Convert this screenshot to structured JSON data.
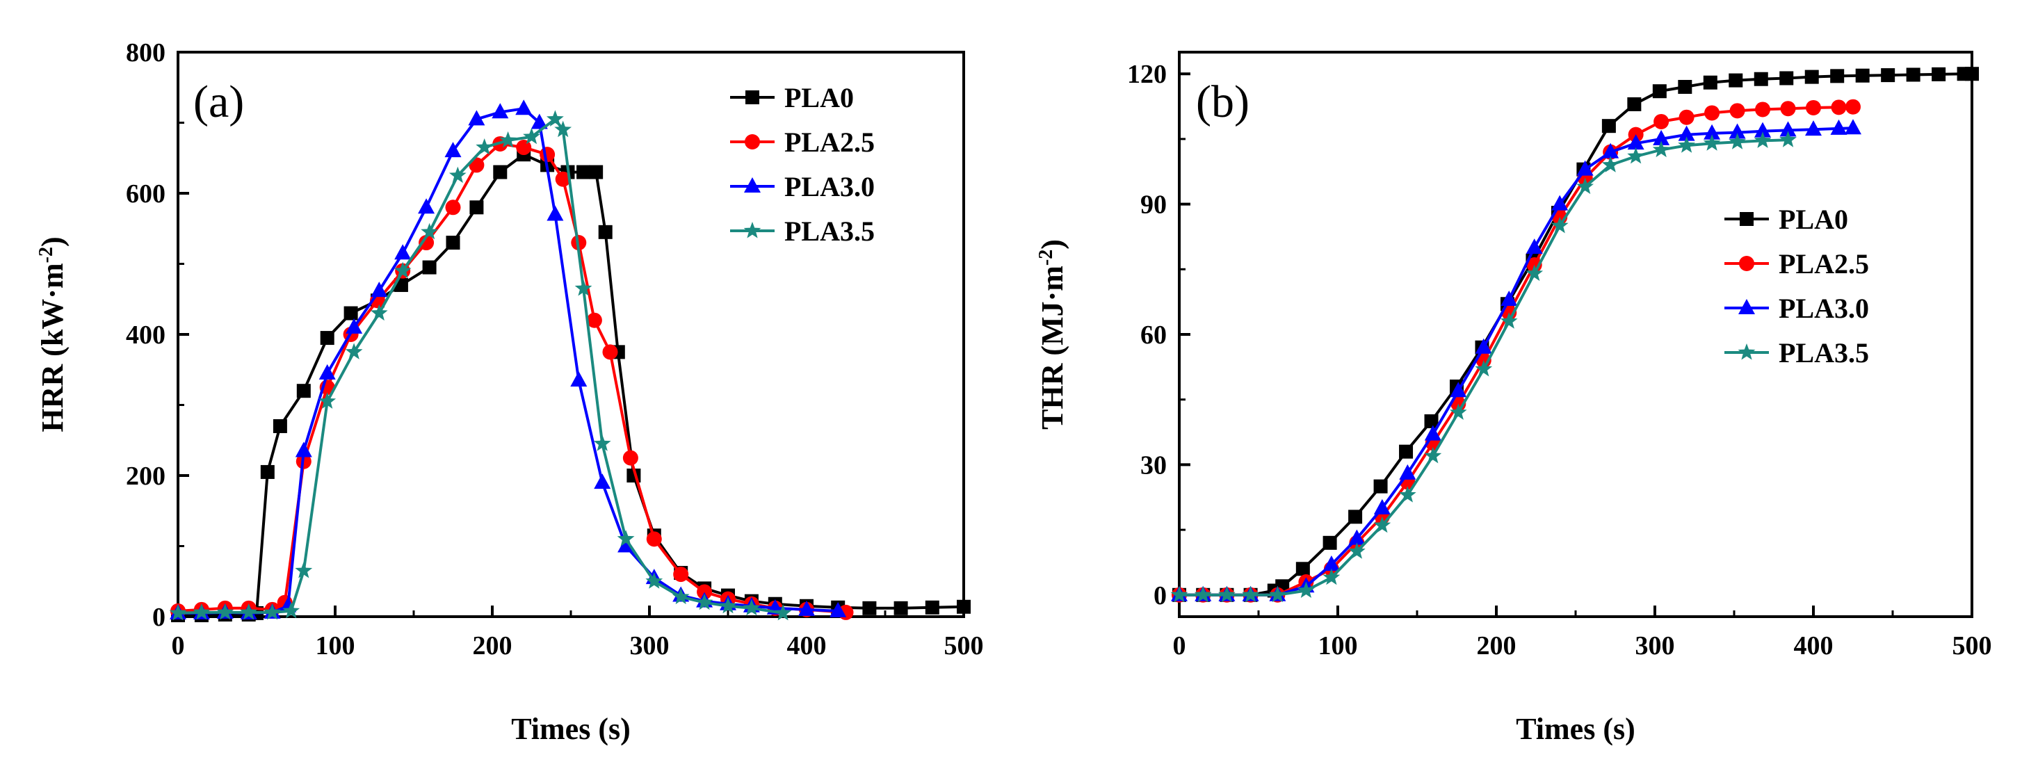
{
  "chart_data": [
    {
      "type": "line",
      "panel": "(a)",
      "xlabel": "Times (s)",
      "ylabel": "HRR (kW·m",
      "ylabel_sup": "-2",
      "ylabel_close": ")",
      "xlim": [
        0,
        500
      ],
      "ylim": [
        0,
        800
      ],
      "xticks": [
        0,
        100,
        200,
        300,
        400,
        500
      ],
      "yticks": [
        0,
        200,
        400,
        600,
        800
      ],
      "legend_position": "top-right",
      "series": [
        {
          "name": "PLA0",
          "color": "#000000",
          "marker": "square",
          "x": [
            0,
            15,
            30,
            45,
            50,
            57,
            65,
            80,
            95,
            110,
            127,
            142,
            160,
            175,
            190,
            205,
            220,
            235,
            248,
            258,
            266,
            272,
            280,
            290,
            303,
            320,
            335,
            350,
            365,
            380,
            400,
            420,
            440,
            460,
            480,
            500
          ],
          "y": [
            2,
            2,
            3,
            3,
            5,
            205,
            270,
            320,
            395,
            430,
            448,
            470,
            495,
            530,
            580,
            630,
            655,
            640,
            630,
            630,
            630,
            545,
            375,
            200,
            115,
            62,
            40,
            30,
            22,
            18,
            15,
            13,
            12,
            12,
            13,
            14
          ]
        },
        {
          "name": "PLA2.5",
          "color": "#ff0000",
          "marker": "circle",
          "x": [
            0,
            15,
            30,
            45,
            60,
            68,
            80,
            95,
            110,
            127,
            143,
            158,
            175,
            190,
            205,
            220,
            235,
            245,
            255,
            265,
            275,
            288,
            303,
            320,
            335,
            350,
            365,
            380,
            400,
            425
          ],
          "y": [
            8,
            10,
            12,
            12,
            10,
            20,
            220,
            325,
            400,
            448,
            490,
            530,
            580,
            640,
            670,
            665,
            655,
            620,
            530,
            420,
            375,
            225,
            110,
            60,
            35,
            25,
            18,
            12,
            10,
            6
          ]
        },
        {
          "name": "PLA3.0",
          "color": "#0000ff",
          "marker": "triangle",
          "x": [
            0,
            15,
            30,
            45,
            60,
            70,
            80,
            95,
            112,
            128,
            143,
            158,
            175,
            190,
            205,
            220,
            230,
            240,
            255,
            270,
            285,
            303,
            320,
            335,
            350,
            365,
            380,
            400,
            420
          ],
          "y": [
            5,
            5,
            6,
            5,
            6,
            15,
            235,
            345,
            410,
            462,
            515,
            580,
            660,
            705,
            715,
            720,
            700,
            570,
            335,
            190,
            100,
            55,
            30,
            22,
            18,
            15,
            12,
            10,
            8
          ]
        },
        {
          "name": "PLA3.5",
          "color": "#1b8a80",
          "marker": "star",
          "x": [
            0,
            15,
            30,
            45,
            60,
            72,
            80,
            95,
            112,
            128,
            143,
            160,
            178,
            195,
            210,
            225,
            240,
            245,
            258,
            270,
            285,
            303,
            320,
            335,
            350,
            365,
            385
          ],
          "y": [
            5,
            6,
            6,
            6,
            6,
            8,
            65,
            305,
            375,
            430,
            490,
            545,
            625,
            665,
            675,
            680,
            705,
            690,
            465,
            245,
            110,
            50,
            28,
            20,
            15,
            12,
            5
          ]
        }
      ]
    },
    {
      "type": "line",
      "panel": "(b)",
      "xlabel": "Times (s)",
      "ylabel": "THR (MJ·m",
      "ylabel_sup": "-2",
      "ylabel_close": ")",
      "xlim": [
        0,
        500
      ],
      "ylim": [
        -5,
        125
      ],
      "xticks": [
        0,
        100,
        200,
        300,
        400,
        500
      ],
      "yticks": [
        0,
        30,
        60,
        90,
        120
      ],
      "legend_position": "center-right",
      "series": [
        {
          "name": "PLA0",
          "color": "#000000",
          "marker": "square",
          "x": [
            0,
            15,
            30,
            45,
            60,
            65,
            78,
            95,
            111,
            127,
            143,
            159,
            175,
            191,
            207,
            223,
            239,
            255,
            271,
            287,
            303,
            319,
            335,
            351,
            367,
            383,
            399,
            415,
            431,
            447,
            463,
            479,
            495,
            500
          ],
          "y": [
            0,
            0,
            0,
            0,
            1,
            2,
            6,
            12,
            18,
            25,
            33,
            40,
            48,
            57,
            67,
            77,
            88,
            98,
            108,
            113,
            116,
            117,
            118,
            118.5,
            118.8,
            119,
            119.3,
            119.5,
            119.6,
            119.7,
            119.8,
            119.9,
            120,
            120
          ]
        },
        {
          "name": "PLA2.5",
          "color": "#ff0000",
          "marker": "circle",
          "x": [
            0,
            15,
            30,
            45,
            62,
            80,
            96,
            112,
            128,
            144,
            160,
            176,
            192,
            208,
            224,
            240,
            256,
            272,
            288,
            304,
            320,
            336,
            352,
            368,
            384,
            400,
            416,
            425
          ],
          "y": [
            0,
            0,
            0,
            0,
            0,
            3,
            6,
            12,
            18,
            26,
            35,
            44,
            54,
            65,
            76,
            87,
            96,
            102,
            106,
            109,
            110,
            111,
            111.5,
            111.8,
            112,
            112.2,
            112.3,
            112.4
          ]
        },
        {
          "name": "PLA3.0",
          "color": "#0000ff",
          "marker": "triangle",
          "x": [
            0,
            15,
            30,
            45,
            62,
            80,
            96,
            112,
            128,
            144,
            160,
            176,
            192,
            208,
            224,
            240,
            256,
            272,
            288,
            304,
            320,
            336,
            352,
            368,
            384,
            400,
            416,
            425
          ],
          "y": [
            0,
            0,
            0,
            0,
            0,
            2,
            7,
            13,
            20,
            28,
            37,
            47,
            57,
            68,
            80,
            90,
            98,
            102,
            104,
            105,
            106,
            106.3,
            106.5,
            106.8,
            107,
            107.2,
            107.4,
            107.5
          ]
        },
        {
          "name": "PLA3.5",
          "color": "#1b8a80",
          "marker": "star",
          "x": [
            0,
            15,
            30,
            45,
            62,
            80,
            96,
            112,
            128,
            144,
            160,
            176,
            192,
            208,
            224,
            240,
            256,
            272,
            288,
            304,
            320,
            336,
            352,
            368,
            384
          ],
          "y": [
            0,
            0,
            0,
            0,
            0,
            1,
            4,
            10,
            16,
            23,
            32,
            42,
            52,
            63,
            74,
            85,
            94,
            99,
            101,
            102.5,
            103.5,
            104,
            104.3,
            104.6,
            104.8
          ]
        }
      ]
    }
  ]
}
